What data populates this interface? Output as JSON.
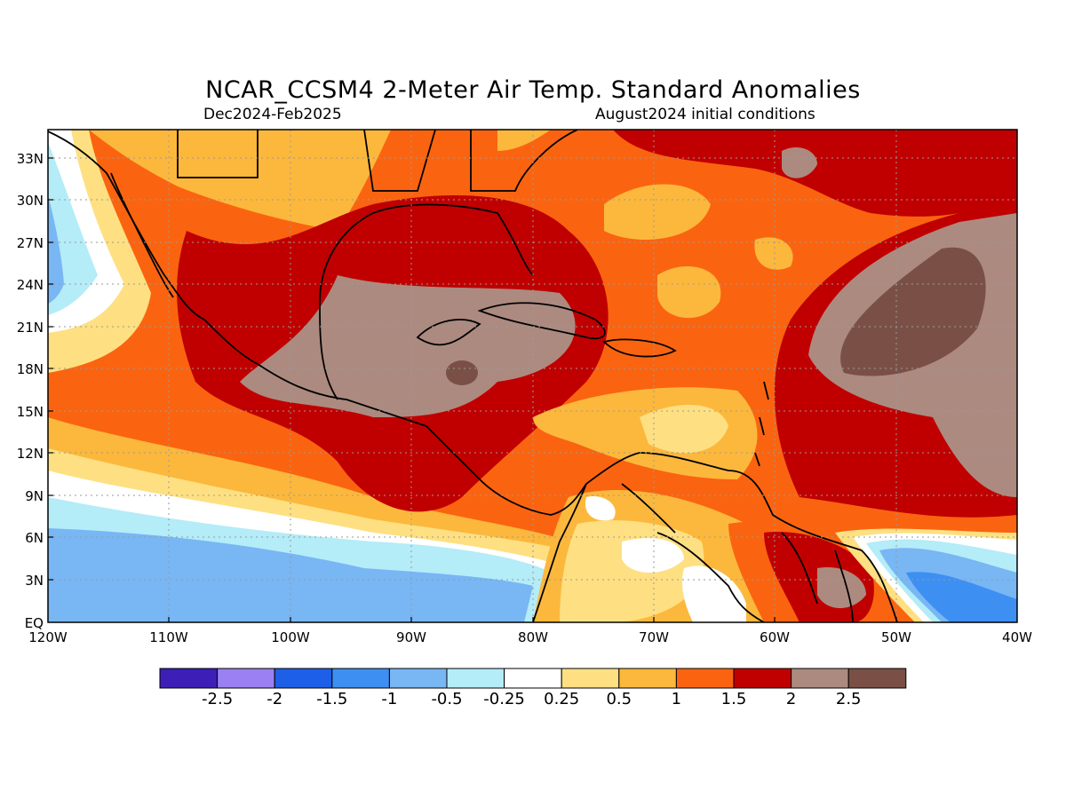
{
  "title": "NCAR_CCSM4 2-Meter Air Temp. Standard Anomalies",
  "subtitle_left": "Dec2024-Feb2025",
  "subtitle_right": "August2024 initial conditions",
  "map": {
    "lon_range": [
      -120,
      -40
    ],
    "lat_range": [
      0,
      35
    ],
    "lat_ticks": [
      "33N",
      "30N",
      "27N",
      "24N",
      "21N",
      "18N",
      "15N",
      "12N",
      "9N",
      "6N",
      "3N",
      "EQ"
    ],
    "lon_ticks": [
      "120W",
      "110W",
      "100W",
      "90W",
      "80W",
      "70W",
      "60W",
      "50W",
      "40W"
    ],
    "grid": true
  },
  "colorbar": {
    "colors": [
      "#3d1fb8",
      "#9a80f0",
      "#1e5fe8",
      "#3d8ff2",
      "#78b6f4",
      "#b4ecf8",
      "#ffffff",
      "#fee082",
      "#fcb83c",
      "#fa6410",
      "#c00000",
      "#ac8a80",
      "#7a5046"
    ],
    "labels": [
      "-2.5",
      "-2",
      "-1.5",
      "-1",
      "-0.5",
      "-0.25",
      "0.25",
      "0.5",
      "1",
      "1.5",
      "2",
      "2.5"
    ]
  }
}
